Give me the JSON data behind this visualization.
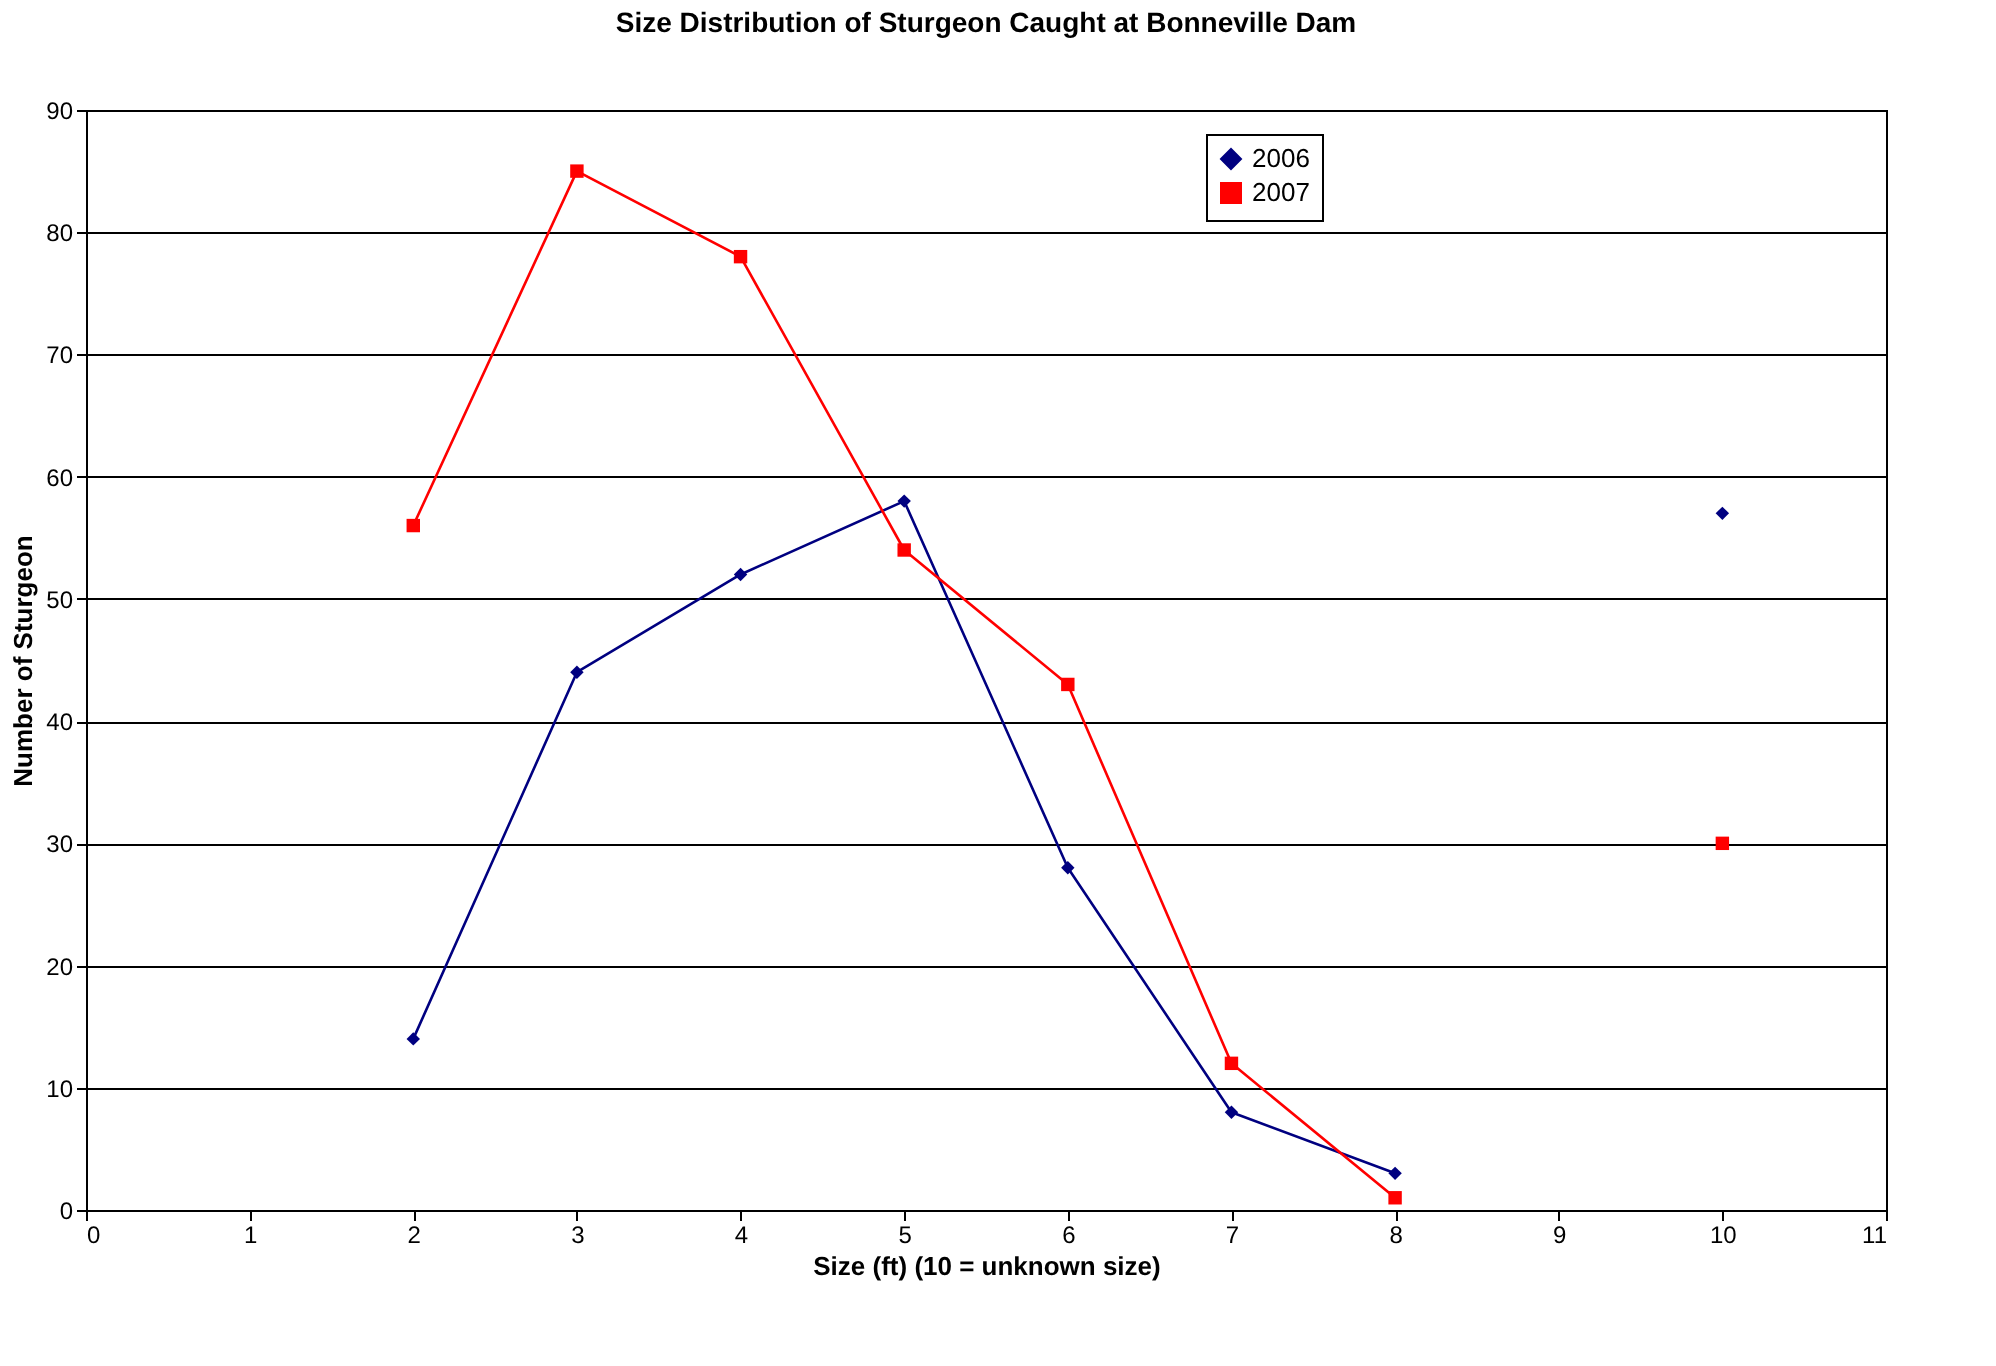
{
  "chart_data": {
    "type": "line",
    "title": "Size Distribution of Sturgeon Caught at Bonneville Dam",
    "xlabel": "Size (ft) (10 = unknown size)",
    "ylabel": "Number of Sturgeon",
    "x": [
      2,
      3,
      4,
      5,
      6,
      7,
      8,
      9,
      10
    ],
    "series": [
      {
        "name": "2006",
        "color": "#000080",
        "marker": "diamond",
        "values": [
          14,
          44,
          52,
          58,
          28,
          8,
          3,
          null,
          57
        ]
      },
      {
        "name": "2007",
        "color": "#ff0000",
        "marker": "square",
        "values": [
          56,
          85,
          78,
          54,
          43,
          12,
          1,
          null,
          30
        ]
      }
    ],
    "xlim": [
      0,
      11
    ],
    "xticks": [
      0,
      1,
      2,
      3,
      4,
      5,
      6,
      7,
      8,
      9,
      10,
      11
    ],
    "ylim": [
      0,
      90
    ],
    "yticks": [
      0,
      10,
      20,
      30,
      40,
      50,
      60,
      70,
      80,
      90
    ],
    "grid": "y",
    "legend": "top right",
    "line_style": "solid"
  }
}
